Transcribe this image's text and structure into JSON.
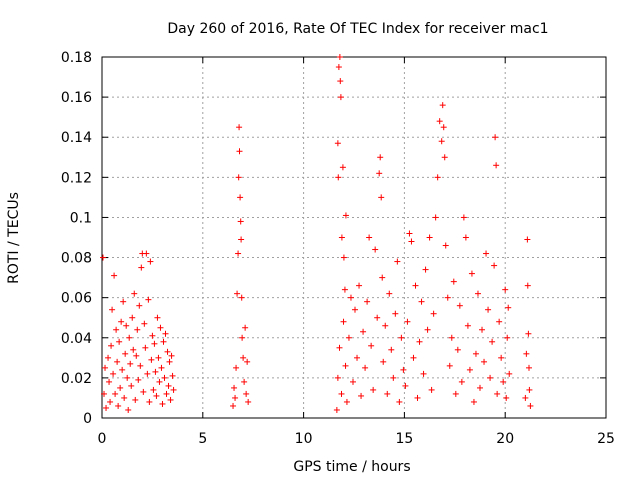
{
  "chart_data": {
    "type": "scatter",
    "title": "Day 260 of 2016, Rate Of TEC Index for receiver mac1",
    "xlabel": "GPS time / hours",
    "ylabel": "ROTI / TECUs",
    "xlim": [
      0,
      25
    ],
    "ylim": [
      0,
      0.18
    ],
    "xticks": [
      "0",
      "5",
      "10",
      "15",
      "20",
      "25"
    ],
    "xtick_values": [
      0,
      5,
      10,
      15,
      20,
      25
    ],
    "yticks": [
      "0",
      "0.02",
      "0.04",
      "0.06",
      "0.08",
      "0.1",
      "0.12",
      "0.14",
      "0.16",
      "0.18"
    ],
    "ytick_values": [
      0,
      0.02,
      0.04,
      0.06,
      0.08,
      0.1,
      0.12,
      0.14,
      0.16,
      0.18
    ],
    "grid": true,
    "marker": "+",
    "color": "#ff0000",
    "series": [
      {
        "name": "ROTI",
        "points": [
          [
            0.05,
            0.08
          ],
          [
            0.1,
            0.012
          ],
          [
            0.15,
            0.025
          ],
          [
            0.2,
            0.005
          ],
          [
            0.3,
            0.03
          ],
          [
            0.35,
            0.018
          ],
          [
            0.4,
            0.008
          ],
          [
            0.45,
            0.036
          ],
          [
            0.5,
            0.054
          ],
          [
            0.55,
            0.022
          ],
          [
            0.6,
            0.071
          ],
          [
            0.65,
            0.012
          ],
          [
            0.7,
            0.044
          ],
          [
            0.75,
            0.028
          ],
          [
            0.8,
            0.006
          ],
          [
            0.85,
            0.038
          ],
          [
            0.9,
            0.015
          ],
          [
            0.95,
            0.048
          ],
          [
            1.0,
            0.024
          ],
          [
            1.05,
            0.058
          ],
          [
            1.1,
            0.01
          ],
          [
            1.15,
            0.032
          ],
          [
            1.2,
            0.046
          ],
          [
            1.25,
            0.02
          ],
          [
            1.3,
            0.004
          ],
          [
            1.35,
            0.04
          ],
          [
            1.4,
            0.027
          ],
          [
            1.45,
            0.016
          ],
          [
            1.5,
            0.05
          ],
          [
            1.55,
            0.034
          ],
          [
            1.6,
            0.062
          ],
          [
            1.65,
            0.009
          ],
          [
            1.7,
            0.031
          ],
          [
            1.75,
            0.044
          ],
          [
            1.8,
            0.019
          ],
          [
            1.85,
            0.056
          ],
          [
            1.9,
            0.026
          ],
          [
            1.95,
            0.075
          ],
          [
            2.0,
            0.082
          ],
          [
            2.05,
            0.013
          ],
          [
            2.1,
            0.047
          ],
          [
            2.15,
            0.035
          ],
          [
            2.2,
            0.082
          ],
          [
            2.25,
            0.022
          ],
          [
            2.3,
            0.059
          ],
          [
            2.35,
            0.008
          ],
          [
            2.4,
            0.078
          ],
          [
            2.45,
            0.029
          ],
          [
            2.5,
            0.041
          ],
          [
            2.55,
            0.014
          ],
          [
            2.6,
            0.037
          ],
          [
            2.65,
            0.023
          ],
          [
            2.7,
            0.011
          ],
          [
            2.75,
            0.05
          ],
          [
            2.8,
            0.03
          ],
          [
            2.85,
            0.018
          ],
          [
            2.9,
            0.045
          ],
          [
            2.95,
            0.025
          ],
          [
            3.0,
            0.007
          ],
          [
            3.05,
            0.038
          ],
          [
            3.1,
            0.02
          ],
          [
            3.15,
            0.042
          ],
          [
            3.2,
            0.012
          ],
          [
            3.25,
            0.033
          ],
          [
            3.3,
            0.016
          ],
          [
            3.35,
            0.028
          ],
          [
            3.4,
            0.009
          ],
          [
            3.45,
            0.031
          ],
          [
            3.5,
            0.021
          ],
          [
            3.55,
            0.014
          ],
          [
            6.5,
            0.006
          ],
          [
            6.55,
            0.015
          ],
          [
            6.6,
            0.01
          ],
          [
            6.65,
            0.025
          ],
          [
            6.7,
            0.062
          ],
          [
            6.75,
            0.082
          ],
          [
            6.78,
            0.12
          ],
          [
            6.8,
            0.145
          ],
          [
            6.82,
            0.133
          ],
          [
            6.85,
            0.11
          ],
          [
            6.88,
            0.098
          ],
          [
            6.9,
            0.089
          ],
          [
            6.93,
            0.06
          ],
          [
            6.95,
            0.04
          ],
          [
            7.0,
            0.03
          ],
          [
            7.05,
            0.018
          ],
          [
            7.1,
            0.045
          ],
          [
            7.15,
            0.012
          ],
          [
            7.2,
            0.028
          ],
          [
            7.25,
            0.008
          ],
          [
            11.75,
            0.175
          ],
          [
            11.8,
            0.18
          ],
          [
            11.82,
            0.168
          ],
          [
            11.85,
            0.16
          ],
          [
            11.7,
            0.137
          ],
          [
            11.72,
            0.12
          ],
          [
            11.9,
            0.09
          ],
          [
            11.95,
            0.125
          ],
          [
            12.0,
            0.08
          ],
          [
            12.05,
            0.064
          ],
          [
            12.1,
            0.101
          ],
          [
            11.65,
            0.004
          ],
          [
            11.7,
            0.02
          ],
          [
            11.78,
            0.035
          ],
          [
            11.88,
            0.012
          ],
          [
            11.98,
            0.048
          ],
          [
            12.08,
            0.026
          ],
          [
            12.15,
            0.008
          ],
          [
            12.25,
            0.04
          ],
          [
            12.35,
            0.06
          ],
          [
            12.45,
            0.018
          ],
          [
            12.55,
            0.054
          ],
          [
            12.65,
            0.03
          ],
          [
            12.75,
            0.066
          ],
          [
            12.85,
            0.011
          ],
          [
            12.95,
            0.043
          ],
          [
            13.05,
            0.025
          ],
          [
            13.15,
            0.058
          ],
          [
            13.25,
            0.09
          ],
          [
            13.35,
            0.036
          ],
          [
            13.45,
            0.014
          ],
          [
            13.55,
            0.084
          ],
          [
            13.65,
            0.05
          ],
          [
            13.75,
            0.122
          ],
          [
            13.8,
            0.13
          ],
          [
            13.85,
            0.11
          ],
          [
            13.9,
            0.07
          ],
          [
            13.95,
            0.028
          ],
          [
            14.05,
            0.046
          ],
          [
            14.15,
            0.012
          ],
          [
            14.25,
            0.062
          ],
          [
            14.35,
            0.034
          ],
          [
            14.45,
            0.02
          ],
          [
            14.55,
            0.052
          ],
          [
            14.65,
            0.078
          ],
          [
            14.75,
            0.008
          ],
          [
            14.85,
            0.04
          ],
          [
            14.95,
            0.024
          ],
          [
            15.05,
            0.016
          ],
          [
            15.15,
            0.048
          ],
          [
            15.25,
            0.092
          ],
          [
            15.35,
            0.088
          ],
          [
            15.45,
            0.03
          ],
          [
            15.55,
            0.066
          ],
          [
            15.65,
            0.01
          ],
          [
            15.75,
            0.038
          ],
          [
            15.85,
            0.058
          ],
          [
            15.95,
            0.022
          ],
          [
            16.05,
            0.074
          ],
          [
            16.15,
            0.044
          ],
          [
            16.25,
            0.09
          ],
          [
            16.35,
            0.014
          ],
          [
            16.45,
            0.052
          ],
          [
            16.55,
            0.1
          ],
          [
            16.65,
            0.12
          ],
          [
            16.75,
            0.148
          ],
          [
            16.85,
            0.138
          ],
          [
            16.9,
            0.156
          ],
          [
            16.95,
            0.145
          ],
          [
            17.0,
            0.13
          ],
          [
            17.05,
            0.086
          ],
          [
            17.15,
            0.06
          ],
          [
            17.25,
            0.026
          ],
          [
            17.35,
            0.04
          ],
          [
            17.45,
            0.068
          ],
          [
            17.55,
            0.012
          ],
          [
            17.65,
            0.034
          ],
          [
            17.75,
            0.056
          ],
          [
            17.85,
            0.018
          ],
          [
            17.95,
            0.1
          ],
          [
            18.05,
            0.09
          ],
          [
            18.15,
            0.046
          ],
          [
            18.25,
            0.024
          ],
          [
            18.35,
            0.072
          ],
          [
            18.45,
            0.008
          ],
          [
            18.55,
            0.032
          ],
          [
            18.65,
            0.062
          ],
          [
            18.75,
            0.015
          ],
          [
            18.85,
            0.044
          ],
          [
            18.95,
            0.028
          ],
          [
            19.05,
            0.082
          ],
          [
            19.15,
            0.054
          ],
          [
            19.25,
            0.02
          ],
          [
            19.35,
            0.038
          ],
          [
            19.45,
            0.076
          ],
          [
            19.5,
            0.14
          ],
          [
            19.55,
            0.126
          ],
          [
            19.6,
            0.012
          ],
          [
            19.7,
            0.048
          ],
          [
            19.8,
            0.03
          ],
          [
            19.9,
            0.018
          ],
          [
            20.0,
            0.064
          ],
          [
            20.05,
            0.01
          ],
          [
            20.1,
            0.04
          ],
          [
            20.15,
            0.055
          ],
          [
            20.2,
            0.022
          ],
          [
            21.0,
            0.01
          ],
          [
            21.05,
            0.032
          ],
          [
            21.1,
            0.089
          ],
          [
            21.12,
            0.066
          ],
          [
            21.15,
            0.042
          ],
          [
            21.18,
            0.025
          ],
          [
            21.2,
            0.014
          ],
          [
            21.25,
            0.006
          ]
        ]
      }
    ]
  }
}
